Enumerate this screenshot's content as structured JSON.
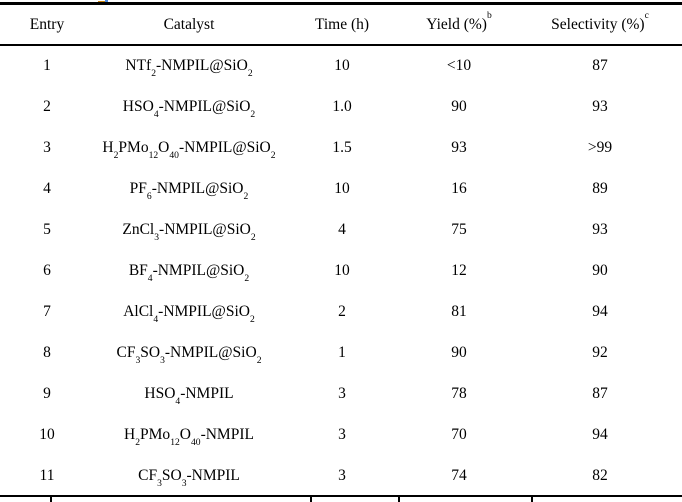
{
  "table": {
    "columns": [
      {
        "key": "entry",
        "label": "Entry"
      },
      {
        "key": "catalyst",
        "label": "Catalyst"
      },
      {
        "key": "time",
        "label": "Time (h)"
      },
      {
        "key": "yield",
        "label": "Yield (%)^b"
      },
      {
        "key": "selectivity",
        "label": "Selectivity (%)^c"
      }
    ],
    "rows": [
      {
        "entry": "1",
        "catalyst": "NTf_2-NMPIL@SiO_2",
        "time": "10",
        "yield": "<10",
        "selectivity": "87"
      },
      {
        "entry": "2",
        "catalyst": "HSO_4-NMPIL@SiO_2",
        "time": "1.0",
        "yield": "90",
        "selectivity": "93"
      },
      {
        "entry": "3",
        "catalyst": "H_2PMo_12O_40-NMPIL@SiO_2",
        "time": "1.5",
        "yield": "93",
        "selectivity": ">99"
      },
      {
        "entry": "4",
        "catalyst": "PF_6-NMPIL@SiO_2",
        "time": "10",
        "yield": "16",
        "selectivity": "89"
      },
      {
        "entry": "5",
        "catalyst": "ZnCl_3-NMPIL@SiO_2",
        "time": "4",
        "yield": "75",
        "selectivity": "93"
      },
      {
        "entry": "6",
        "catalyst": "BF_4-NMPIL@SiO_2",
        "time": "10",
        "yield": "12",
        "selectivity": "90"
      },
      {
        "entry": "7",
        "catalyst": "AlCl_4-NMPIL@SiO_2",
        "time": "2",
        "yield": "81",
        "selectivity": "94"
      },
      {
        "entry": "8",
        "catalyst": "CF_3SO_3-NMPIL@SiO_2",
        "time": "1",
        "yield": "90",
        "selectivity": "92"
      },
      {
        "entry": "9",
        "catalyst": "HSO_4-NMPIL",
        "time": "3",
        "yield": "78",
        "selectivity": "87"
      },
      {
        "entry": "10",
        "catalyst": "H_2PMo_12O_40-NMPIL",
        "time": "3",
        "yield": "70",
        "selectivity": "94"
      },
      {
        "entry": "11",
        "catalyst": "CF_3SO_3-NMPIL",
        "time": "3",
        "yield": "74",
        "selectivity": "82"
      }
    ],
    "line_color": "#000000",
    "background_color": "#ffffff"
  }
}
